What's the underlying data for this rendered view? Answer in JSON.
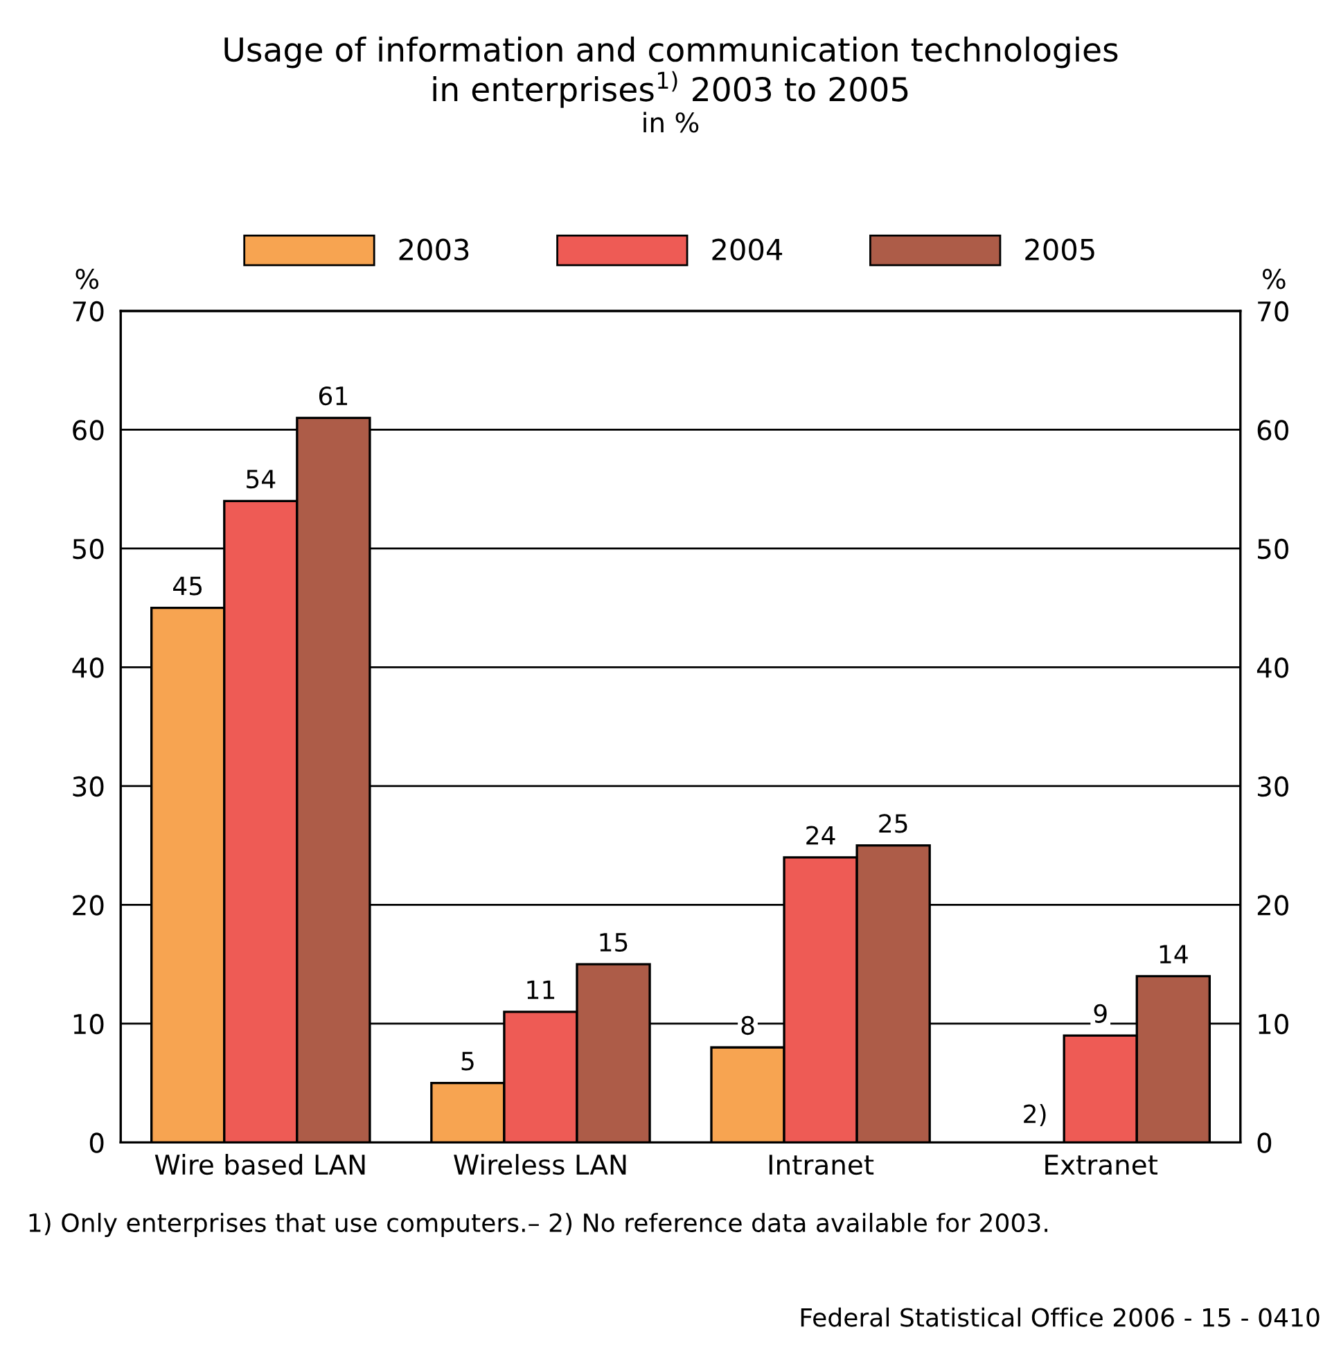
{
  "chart_data": {
    "type": "bar",
    "title": "Usage of information and communication technologies\nin enterprises$^{1)}$ 2003 to 2005",
    "subtitle": "in %",
    "ylabel": "%",
    "y2label": "%",
    "categories": [
      "Wire based LAN",
      "Wireless LAN",
      "Intranet",
      "Extranet"
    ],
    "series": [
      {
        "name": "2003",
        "color": "#f7a451",
        "values": [
          45,
          5,
          8,
          null
        ]
      },
      {
        "name": "2004",
        "color": "#ee5b55",
        "values": [
          54,
          11,
          24,
          9
        ]
      },
      {
        "name": "2005",
        "color": "#ad5c48",
        "values": [
          61,
          15,
          25,
          14
        ]
      }
    ],
    "ylim": [
      0,
      70
    ],
    "yticks": [
      0,
      10,
      20,
      30,
      40,
      50,
      60,
      70
    ],
    "y2lim": [
      0,
      70
    ],
    "y2ticks": [
      0,
      10,
      20,
      30,
      40,
      50,
      60,
      70
    ],
    "grid": "y",
    "legend": "top",
    "data_labels": true,
    "annotations": [
      {
        "text": "2)",
        "x": "Extranet",
        "y": 0
      },
      "1) Only enterprises that use computers.– 2) No reference data available for 2003.",
      "Federal Statistical Office 2006 - 15 - 0410"
    ]
  }
}
